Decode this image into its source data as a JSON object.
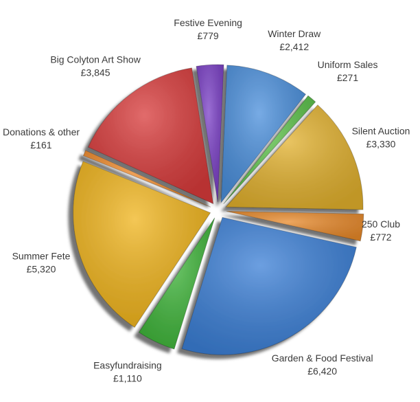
{
  "chart_data": {
    "type": "pie",
    "categories": [
      "Festive Evening",
      "Winter Draw",
      "Uniform Sales",
      "Silent Auction",
      "250 Club",
      "Garden & Food Festival",
      "Easyfundraising",
      "Summer Fete",
      "Donations & other",
      "Big Colyton Art Show"
    ],
    "values": [
      779,
      2412,
      271,
      3330,
      772,
      6420,
      1110,
      5320,
      161,
      3845
    ],
    "value_labels": [
      "£779",
      "£2,412",
      "£271",
      "£3,330",
      "£772",
      "£6,420",
      "£1,110",
      "£5,320",
      "£161",
      "£3,845"
    ],
    "colors": [
      "#7a3fc6",
      "#4a8fdc",
      "#5cc24a",
      "#e2b12e",
      "#e8892a",
      "#3b7fd6",
      "#3fb53a",
      "#f0b41c",
      "#f08a2a",
      "#d83a3a"
    ]
  }
}
